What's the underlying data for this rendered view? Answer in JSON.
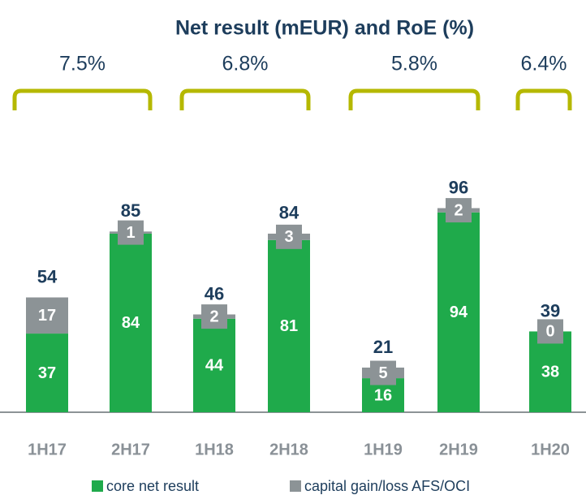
{
  "chart_data": {
    "type": "stacked-bar",
    "title": "Net result (mEUR) and RoE (%)",
    "categories": [
      "1H17",
      "2H17",
      "1H18",
      "2H18",
      "1H19",
      "2H19",
      "1H20"
    ],
    "series": [
      {
        "name": "core net result",
        "color": "#1faa4b",
        "values": [
          37,
          84,
          44,
          81,
          16,
          94,
          38
        ]
      },
      {
        "name": "capital gain/loss AFS/OCI",
        "color": "#8c9396",
        "values": [
          17,
          1,
          2,
          3,
          5,
          2,
          0
        ]
      }
    ],
    "totals": [
      54,
      85,
      46,
      84,
      21,
      96,
      39
    ],
    "annotations": [
      {
        "text": "7.5%",
        "categories": [
          "1H17",
          "2H17"
        ]
      },
      {
        "text": "6.8%",
        "categories": [
          "1H18",
          "2H18"
        ]
      },
      {
        "text": "5.8%",
        "categories": [
          "1H19",
          "2H19"
        ]
      },
      {
        "text": "6.4%",
        "categories": [
          "1H20"
        ]
      }
    ],
    "ylim": [
      0,
      100
    ]
  }
}
